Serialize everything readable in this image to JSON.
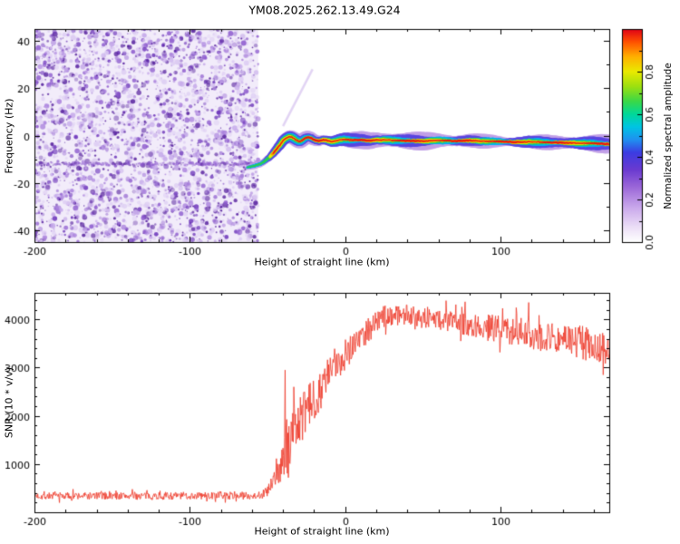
{
  "title": "YM08.2025.262.13.49.G24",
  "chart_data": [
    {
      "type": "heatmap",
      "xlabel": "Height of straight line (km)",
      "ylabel": "Frequency (Hz)",
      "xlim": [
        -200,
        170
      ],
      "ylim": [
        -45,
        45
      ],
      "xticks": [
        -200,
        -100,
        0,
        100
      ],
      "x_minor_step": 20,
      "yticks": [
        -40,
        -20,
        0,
        20,
        40
      ],
      "y_minor_step": 10,
      "colorbar": {
        "label": "Normalized spectral amplitude",
        "ticks": [
          0.0,
          0.2,
          0.4,
          0.6,
          0.8
        ],
        "range": [
          0,
          1
        ],
        "stops": [
          [
            0,
            "#ffffff"
          ],
          [
            0.07,
            "#ecdff7"
          ],
          [
            0.16,
            "#cbaaec"
          ],
          [
            0.26,
            "#9a66d8"
          ],
          [
            0.34,
            "#6a3ad0"
          ],
          [
            0.42,
            "#3c3ce2"
          ],
          [
            0.48,
            "#2090f0"
          ],
          [
            0.54,
            "#00c4e4"
          ],
          [
            0.6,
            "#00d89a"
          ],
          [
            0.66,
            "#3ad848"
          ],
          [
            0.73,
            "#9ce010"
          ],
          [
            0.8,
            "#eaea00"
          ],
          [
            0.87,
            "#ffb000"
          ],
          [
            0.94,
            "#ff5000"
          ],
          [
            1,
            "#df0018"
          ]
        ]
      },
      "noise_region": {
        "x_start": -200,
        "x_end": -56,
        "band_freq": -12
      },
      "noise_palette": {
        "base": "#f2ecfa",
        "blob_colors": [
          "#ddcdf3",
          "#c5a9ea",
          "#aa82dd",
          "#8d5bce",
          "#6d36ba",
          "#58239f"
        ]
      },
      "signal_trace": {
        "x": [
          -63,
          -60,
          -57,
          -54,
          -51,
          -48,
          -45,
          -42,
          -40,
          -38,
          -36,
          -34,
          -32,
          -30,
          -28,
          -26,
          -24,
          -22,
          -20,
          -17,
          -14,
          -11,
          -8,
          -5,
          0,
          5,
          10,
          15,
          20,
          30,
          40,
          50,
          60,
          70,
          80,
          90,
          100,
          110,
          120,
          130,
          140,
          150,
          160,
          170
        ],
        "freq": [
          -13.5,
          -13,
          -12.5,
          -11.8,
          -10.5,
          -8.8,
          -6.5,
          -4,
          -2.2,
          -1,
          -0.5,
          -0.8,
          -1.6,
          -2.4,
          -2.2,
          -1.2,
          -0.6,
          -1,
          -1.8,
          -2.4,
          -1.8,
          -2.2,
          -2.6,
          -2,
          -1.6,
          -2,
          -1.8,
          -2.2,
          -1.8,
          -2,
          -2.2,
          -2.4,
          -2,
          -2.3,
          -2.1,
          -2.4,
          -2.5,
          -2.8,
          -2.6,
          -2.9,
          -3,
          -3.2,
          -3.3,
          -3.6
        ]
      },
      "halo_layers": [
        {
          "width": 15,
          "color": "rgba(193,160,232,0.5)"
        },
        {
          "width": 10.5,
          "color": "rgba(90,70,225,0.8)"
        },
        {
          "width": 7.2,
          "color": "#00b4ee"
        },
        {
          "width": 5.0,
          "color": "#2ecb4e"
        },
        {
          "width": 3.6,
          "color": "#ecec00"
        },
        {
          "width": 2.6,
          "color": "#ff8c00"
        },
        {
          "width": 1.7,
          "color": "#e31414"
        }
      ],
      "streak": {
        "x1": -40,
        "f1": 4,
        "x2": -21,
        "f2": 28,
        "color": "rgba(190,160,230,0.45)",
        "width": 2.5
      }
    },
    {
      "type": "line",
      "xlabel": "Height of straight line (km)",
      "ylabel": "SNR (10 * v/v)",
      "xlim": [
        -200,
        170
      ],
      "ylim": [
        0,
        4550
      ],
      "xticks": [
        -200,
        -100,
        0,
        100
      ],
      "x_minor_step": 20,
      "yticks": [
        1000,
        2000,
        3000,
        4000
      ],
      "y_minor_step": 200,
      "series": [
        {
          "name": "SNR",
          "color": "#ee3524",
          "envelope_x": [
            -200,
            -120,
            -60,
            -54,
            -50,
            -47,
            -44,
            -41,
            -38,
            -35,
            -32,
            -28,
            -24,
            -20,
            -16,
            -12,
            -8,
            -4,
            0,
            5,
            10,
            15,
            20,
            25,
            30,
            40,
            50,
            60,
            70,
            80,
            90,
            100,
            110,
            120,
            130,
            140,
            150,
            160,
            170
          ],
          "envelope_mean": [
            340,
            340,
            345,
            360,
            430,
            560,
            800,
            1050,
            1250,
            1500,
            1750,
            1950,
            2150,
            2350,
            2550,
            2750,
            3000,
            3150,
            3300,
            3500,
            3650,
            3800,
            3950,
            4050,
            4100,
            4100,
            4050,
            4000,
            3950,
            3900,
            3850,
            3800,
            3750,
            3700,
            3650,
            3600,
            3550,
            3450,
            3350
          ],
          "envelope_noise": [
            80,
            80,
            80,
            90,
            120,
            220,
            380,
            520,
            650,
            600,
            550,
            500,
            480,
            460,
            430,
            400,
            380,
            360,
            360,
            330,
            300,
            280,
            250,
            230,
            220,
            220,
            230,
            240,
            250,
            260,
            270,
            280,
            300,
            320,
            330,
            340,
            350,
            350,
            330
          ],
          "spikes": [
            {
              "x": -38.6,
              "value": 2950
            },
            {
              "x": -33.0,
              "value": 2600
            },
            {
              "x": 118,
              "value": 4350
            },
            {
              "x": 166,
              "value": 2850
            }
          ]
        }
      ]
    }
  ]
}
